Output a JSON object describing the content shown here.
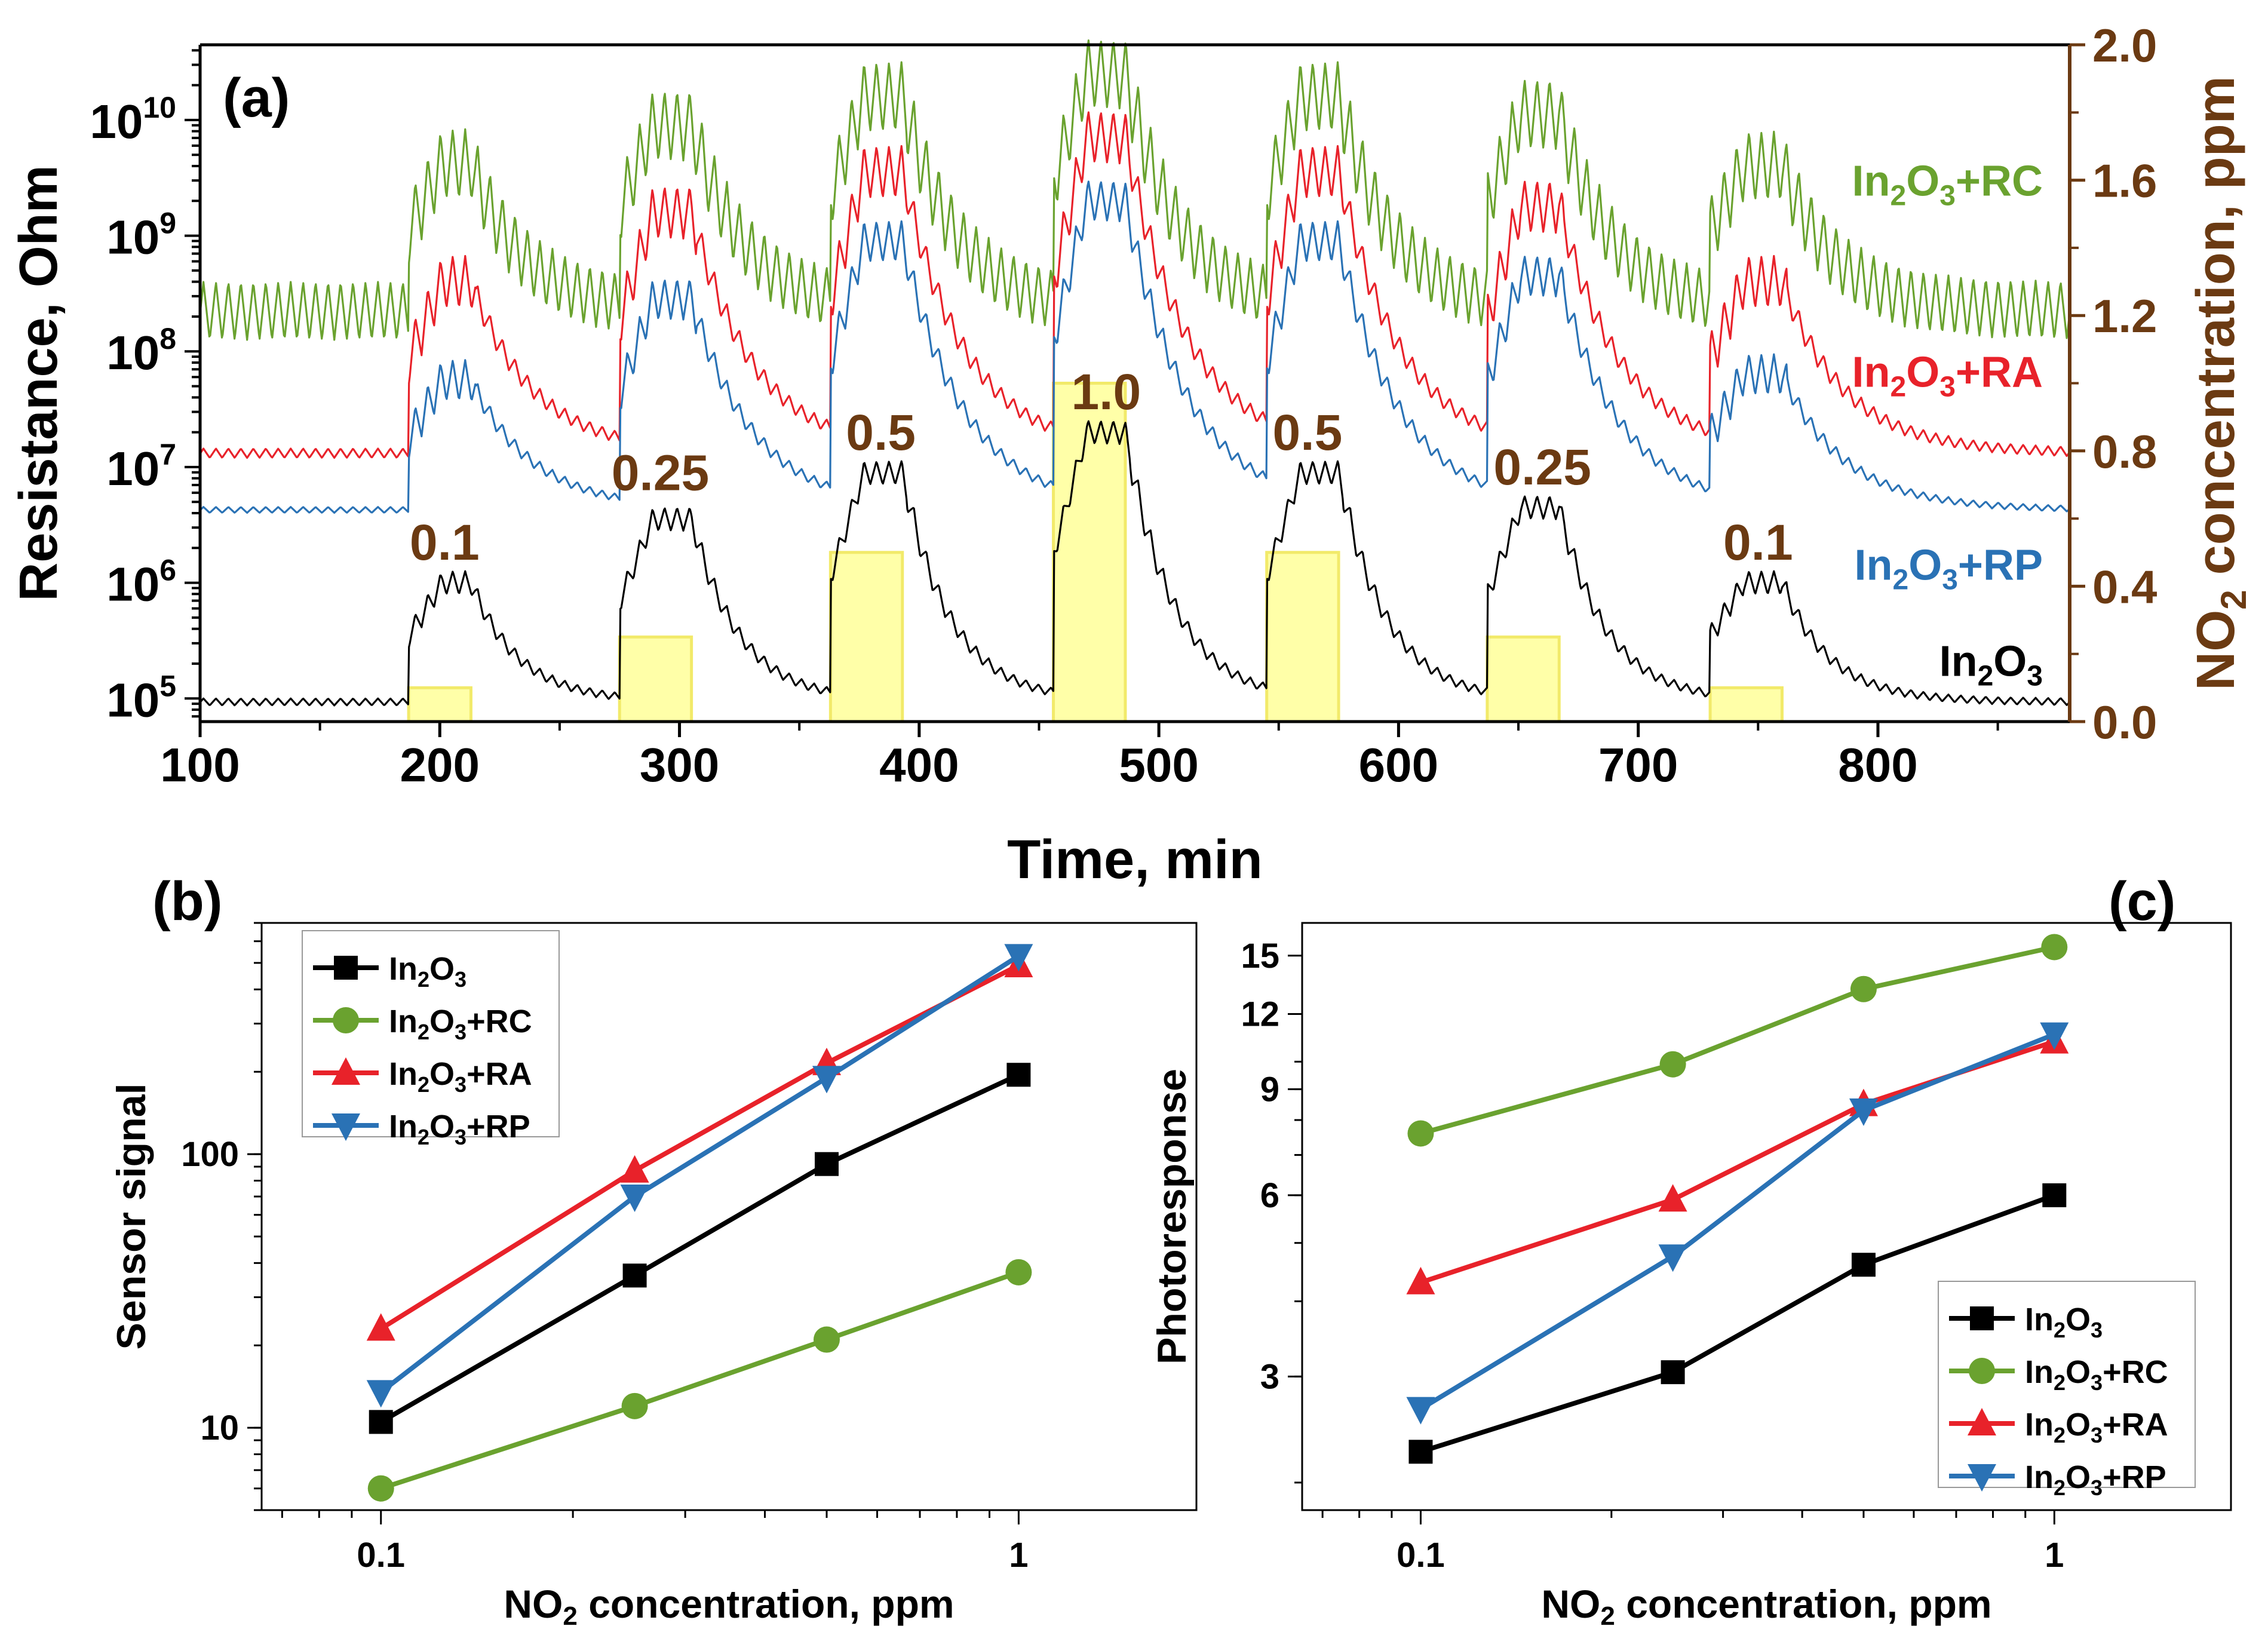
{
  "chart_data": [
    {
      "type": "line",
      "panel": "(a)",
      "title": "",
      "xlabel": "Time, min",
      "ylabel": "Resistance, Ohm",
      "y2label_parts": [
        "NO",
        "2",
        " concentration, ppm"
      ],
      "xlim": [
        100,
        880
      ],
      "ylim_log10": [
        4.8,
        10.65
      ],
      "y2lim": [
        0,
        2.0
      ],
      "x_ticks": [
        100,
        200,
        300,
        400,
        500,
        600,
        700,
        800
      ],
      "x_tick_labels": [
        "100",
        "200",
        "300",
        "400",
        "500",
        "600",
        "700",
        "800"
      ],
      "y_ticks_log10": [
        5,
        6,
        7,
        8,
        9,
        10
      ],
      "y_tick_exponents": [
        "5",
        "6",
        "7",
        "8",
        "9",
        "10"
      ],
      "y2_ticks": [
        0.0,
        0.4,
        0.8,
        1.2,
        1.6,
        2.0
      ],
      "y2_tick_labels": [
        "0.0",
        "0.4",
        "0.8",
        "1.2",
        "1.6",
        "2.0"
      ],
      "colors": {
        "In2O3": "#000000",
        "In2O3+RC": "#6aa22f",
        "In2O3+RA": "#e8222a",
        "In2O3+RP": "#2a72b5",
        "pulse_fill": "#ffffa8",
        "pulse_stroke": "#f2ea6a",
        "axis_right": "#6b3a12"
      },
      "pulses": [
        {
          "start": 187,
          "end": 213,
          "conc": 0.1,
          "label": "0.1"
        },
        {
          "start": 275,
          "end": 305,
          "conc": 0.25,
          "label": "0.25"
        },
        {
          "start": 363,
          "end": 393,
          "conc": 0.5,
          "label": "0.5"
        },
        {
          "start": 456,
          "end": 486,
          "conc": 1.0,
          "label": "1.0"
        },
        {
          "start": 545,
          "end": 575,
          "conc": 0.5,
          "label": "0.5"
        },
        {
          "start": 637,
          "end": 667,
          "conc": 0.25,
          "label": "0.25"
        },
        {
          "start": 730,
          "end": 760,
          "conc": 0.1,
          "label": "0.1"
        }
      ],
      "series": [
        {
          "name": "In2O3",
          "label_base": "In",
          "label_sub1": "2",
          "label_mid": "O",
          "label_sub2": "3",
          "label_suffix": "",
          "baseline_log10": 4.97,
          "ripple_dark": 0.06,
          "ripple_light": 0.2,
          "peak_log10": [
            6.0,
            6.55,
            6.95,
            7.3,
            6.95,
            6.65,
            6.0
          ],
          "decay_tau": 20
        },
        {
          "name": "In2O3+RC",
          "label_base": "In",
          "label_sub1": "2",
          "label_mid": "O",
          "label_sub2": "3",
          "label_suffix": "+RC",
          "baseline_log10": 8.35,
          "ripple_dark": 0.5,
          "ripple_light": 0.6,
          "peak_log10": [
            9.62,
            9.95,
            10.2,
            10.4,
            10.2,
            10.05,
            9.6
          ],
          "decay_tau": 22
        },
        {
          "name": "In2O3+RA",
          "label_base": "In",
          "label_sub1": "2",
          "label_mid": "O",
          "label_sub2": "3",
          "label_suffix": "+RA",
          "baseline_log10": 7.12,
          "ripple_dark": 0.08,
          "ripple_light": 0.45,
          "peak_log10": [
            8.6,
            9.2,
            9.55,
            9.85,
            9.55,
            9.25,
            8.6
          ],
          "decay_tau": 26
        },
        {
          "name": "In2O3+RP",
          "label_base": "In",
          "label_sub1": "2",
          "label_mid": "O",
          "label_sub2": "3",
          "label_suffix": "+RP",
          "baseline_log10": 6.63,
          "ripple_dark": 0.05,
          "ripple_light": 0.35,
          "peak_log10": [
            7.75,
            8.45,
            8.95,
            9.3,
            8.95,
            8.65,
            7.8
          ],
          "decay_tau": 26
        }
      ],
      "series_labels_order": [
        "In2O3+RC",
        "In2O3+RA",
        "In2O3+RP",
        "In2O3"
      ]
    },
    {
      "type": "line",
      "panel": "(b)",
      "title": "",
      "xlabel_parts": [
        "NO",
        "2",
        " concentration, ppm"
      ],
      "ylabel": "Sensor signal",
      "x_scale": "log",
      "y_scale": "log",
      "xlim": [
        0.065,
        1.9
      ],
      "ylim": [
        5,
        700
      ],
      "x_ticks": [
        0.1,
        1
      ],
      "x_tick_labels": [
        "0.1",
        "1"
      ],
      "y_ticks": [
        10,
        100
      ],
      "y_tick_labels": [
        "10",
        "100"
      ],
      "legend_position": "top-left",
      "x": [
        0.1,
        0.25,
        0.5,
        1.0
      ],
      "series": [
        {
          "name": "In2O3",
          "marker": "square",
          "color": "#000000",
          "values": [
            10.5,
            36,
            92,
            195
          ]
        },
        {
          "name": "In2O3+RC",
          "marker": "circle",
          "color": "#6aa22f",
          "values": [
            6,
            12,
            21,
            37
          ]
        },
        {
          "name": "In2O3+RA",
          "marker": "triangle-up",
          "color": "#e8222a",
          "values": [
            23,
            87,
            215,
            490
          ]
        },
        {
          "name": "In2O3+RP",
          "marker": "triangle-down",
          "color": "#2a72b5",
          "values": [
            13.5,
            70,
            190,
            530
          ]
        }
      ]
    },
    {
      "type": "line",
      "panel": "(c)",
      "title": "",
      "xlabel_parts": [
        "NO",
        "2",
        " concentration, ppm"
      ],
      "ylabel": "Photoresponse",
      "x_scale": "log",
      "y_scale": "log",
      "xlim": [
        0.065,
        1.9
      ],
      "ylim": [
        1.8,
        17
      ],
      "x_ticks": [
        0.1,
        1
      ],
      "x_tick_labels": [
        "0.1",
        "1"
      ],
      "y_ticks": [
        3,
        6,
        9,
        12,
        15
      ],
      "y_tick_labels": [
        "3",
        "6",
        "9",
        "12",
        "15"
      ],
      "legend_position": "bottom-right",
      "x": [
        0.1,
        0.25,
        0.5,
        1.0
      ],
      "series": [
        {
          "name": "In2O3",
          "marker": "square",
          "color": "#000000",
          "values": [
            2.25,
            3.05,
            4.6,
            6.0
          ]
        },
        {
          "name": "In2O3+RC",
          "marker": "circle",
          "color": "#6aa22f",
          "values": [
            7.6,
            9.9,
            13.2,
            15.5
          ]
        },
        {
          "name": "In2O3+RA",
          "marker": "triangle-up",
          "color": "#e8222a",
          "values": [
            4.3,
            5.9,
            8.5,
            10.8
          ]
        },
        {
          "name": "In2O3+RP",
          "marker": "triangle-down",
          "color": "#2a72b5",
          "values": [
            2.65,
            4.75,
            8.3,
            11.1
          ]
        }
      ]
    }
  ]
}
